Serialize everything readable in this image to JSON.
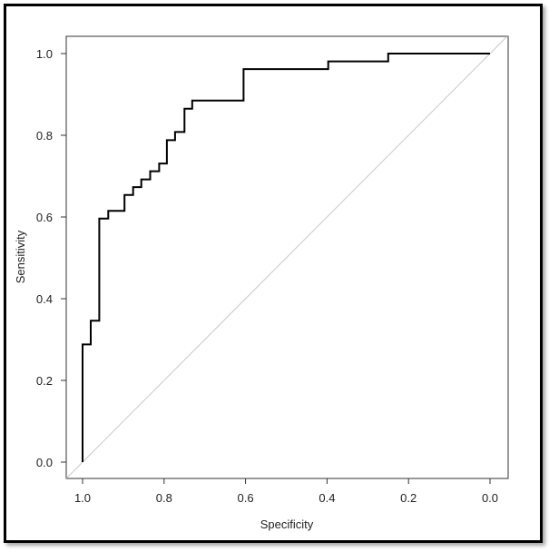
{
  "chart_data": {
    "type": "line",
    "title": "",
    "xlabel": "Specificity",
    "ylabel": "Sensitivity",
    "xlim": [
      1.0,
      0.0
    ],
    "ylim": [
      0.0,
      1.0
    ],
    "x_reversed": true,
    "grid": false,
    "xticks": [
      1.0,
      0.8,
      0.6,
      0.4,
      0.2,
      0.0
    ],
    "xtick_labels": [
      "1.0",
      "0.8",
      "0.6",
      "0.4",
      "0.2",
      "0.0"
    ],
    "yticks": [
      0.0,
      0.2,
      0.4,
      0.6,
      0.8,
      1.0
    ],
    "ytick_labels": [
      "0.0",
      "0.2",
      "0.4",
      "0.6",
      "0.8",
      "1.0"
    ],
    "series": [
      {
        "name": "ROC curve",
        "color": "#000000",
        "step": true,
        "points": [
          [
            1.0,
            0.0
          ],
          [
            1.0,
            0.288
          ],
          [
            0.98,
            0.288
          ],
          [
            0.98,
            0.346
          ],
          [
            0.959,
            0.346
          ],
          [
            0.959,
            0.596
          ],
          [
            0.937,
            0.596
          ],
          [
            0.937,
            0.615
          ],
          [
            0.897,
            0.615
          ],
          [
            0.897,
            0.654
          ],
          [
            0.876,
            0.654
          ],
          [
            0.876,
            0.673
          ],
          [
            0.856,
            0.673
          ],
          [
            0.856,
            0.692
          ],
          [
            0.834,
            0.692
          ],
          [
            0.834,
            0.712
          ],
          [
            0.812,
            0.712
          ],
          [
            0.812,
            0.731
          ],
          [
            0.793,
            0.731
          ],
          [
            0.793,
            0.788
          ],
          [
            0.773,
            0.788
          ],
          [
            0.773,
            0.808
          ],
          [
            0.75,
            0.808
          ],
          [
            0.75,
            0.865
          ],
          [
            0.731,
            0.865
          ],
          [
            0.731,
            0.885
          ],
          [
            0.605,
            0.885
          ],
          [
            0.605,
            0.962
          ],
          [
            0.397,
            0.962
          ],
          [
            0.397,
            0.981
          ],
          [
            0.25,
            0.981
          ],
          [
            0.25,
            1.0
          ],
          [
            0.0,
            1.0
          ]
        ]
      },
      {
        "name": "Reference diagonal",
        "color": "#c8c8c8",
        "points": [
          [
            1.0,
            0.0
          ],
          [
            0.0,
            1.0
          ]
        ]
      }
    ]
  }
}
